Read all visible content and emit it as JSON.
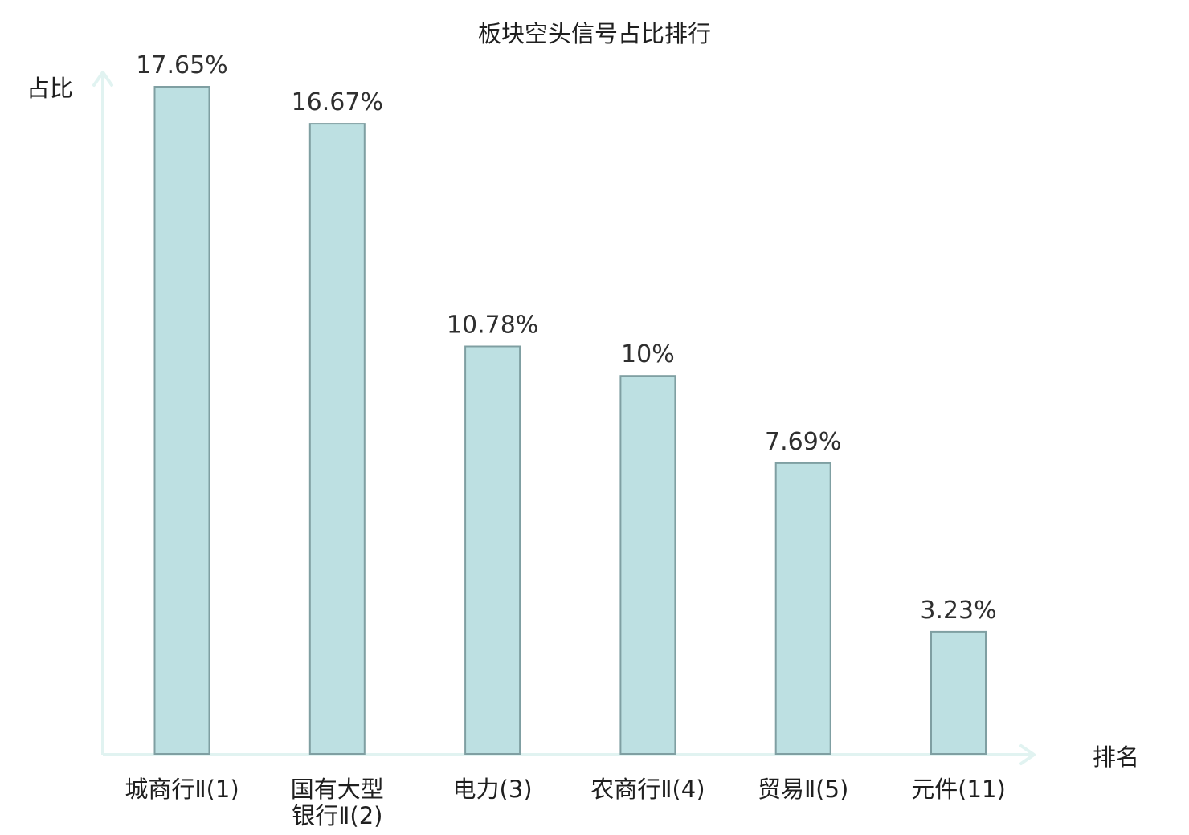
{
  "chart_data": {
    "type": "bar",
    "title": "板块空头信号占比排行",
    "ylabel": "占比",
    "xlabel": "排名",
    "categories": [
      [
        "城商行Ⅱ(1)"
      ],
      [
        "国有大型",
        "银行Ⅱ(2)"
      ],
      [
        "电力(3)"
      ],
      [
        "农商行Ⅱ(4)"
      ],
      [
        "贸易Ⅱ(5)"
      ],
      [
        "元件(11)"
      ]
    ],
    "values": [
      17.65,
      16.67,
      10.78,
      10,
      7.69,
      3.23
    ],
    "value_labels": [
      "17.65%",
      "16.67%",
      "10.78%",
      "10%",
      "7.69%",
      "3.23%"
    ],
    "highlight_index": 5,
    "ylim": [
      0,
      17.65
    ],
    "grid": false,
    "legend": "none"
  },
  "colors": {
    "bar_fill": "#bde0e2",
    "bar_stroke": "#7f9fa2",
    "axis": "#e1f3f1",
    "text": "#1f1f1f",
    "value_text": "#2f2f2f",
    "highlight": "#e8141c"
  }
}
